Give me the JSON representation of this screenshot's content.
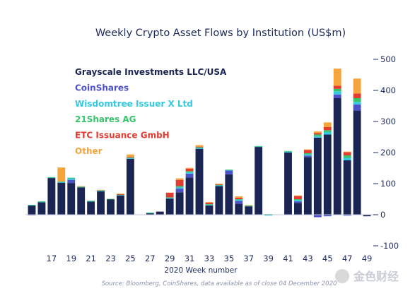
{
  "colors": {
    "grayscale": "#1b2553",
    "coinshares": "#4c51c8",
    "wisdomtree": "#36c8e2",
    "shares21": "#35c46a",
    "etc": "#e23b32",
    "other": "#f5a53b",
    "title": "#1d2a5c",
    "gridline": "#bfc4d4"
  },
  "chart_data": {
    "type": "bar",
    "stacked": true,
    "title": "Weekly Crypto Asset Flows by Institution (US$m)",
    "xlabel": "2020 Week number",
    "ylabel": "",
    "ylim": [
      -100,
      500
    ],
    "yticks": [
      -100,
      0,
      100,
      200,
      300,
      400,
      500
    ],
    "y_axis_side": "right",
    "legend_position": "top-left",
    "grid": false,
    "categories": [
      15,
      16,
      17,
      18,
      19,
      20,
      21,
      22,
      23,
      24,
      25,
      26,
      27,
      28,
      29,
      30,
      31,
      32,
      33,
      34,
      35,
      36,
      37,
      38,
      39,
      40,
      41,
      42,
      43,
      44,
      45,
      46,
      47,
      48,
      49
    ],
    "xtick_labels": [
      "17",
      "19",
      "21",
      "23",
      "25",
      "27",
      "29",
      "31",
      "33",
      "35",
      "37",
      "39",
      "41",
      "43",
      "45",
      "47",
      "49"
    ],
    "series": [
      {
        "name": "Grayscale Investments LLC/USA",
        "color_key": "grayscale",
        "values": [
          30,
          40,
          118,
          103,
          102,
          88,
          42,
          75,
          50,
          62,
          180,
          1,
          5,
          10,
          52,
          72,
          120,
          212,
          30,
          92,
          130,
          35,
          27,
          218,
          1,
          1,
          200,
          38,
          185,
          248,
          258,
          375,
          175,
          335,
          -5
        ]
      },
      {
        "name": "CoinShares",
        "color_key": "coinshares",
        "values": [
          -2,
          0,
          0,
          0,
          10,
          0,
          0,
          0,
          0,
          0,
          0,
          0,
          0,
          0,
          0,
          12,
          12,
          0,
          0,
          0,
          12,
          10,
          0,
          0,
          0,
          0,
          0,
          5,
          5,
          -8,
          -5,
          12,
          -3,
          20,
          0
        ]
      },
      {
        "name": "Wisdomtree Issuer X Ltd",
        "color_key": "wisdomtree",
        "values": [
          1,
          2,
          2,
          2,
          5,
          2,
          2,
          3,
          0,
          2,
          2,
          0,
          1,
          0,
          2,
          5,
          5,
          3,
          2,
          3,
          2,
          3,
          2,
          2,
          -3,
          0,
          3,
          4,
          4,
          5,
          8,
          10,
          8,
          8,
          0
        ]
      },
      {
        "name": "21Shares AG",
        "color_key": "shares21",
        "values": [
          1,
          1,
          1,
          2,
          2,
          1,
          1,
          1,
          1,
          1,
          2,
          0,
          1,
          0,
          2,
          3,
          3,
          2,
          2,
          1,
          1,
          2,
          1,
          1,
          1,
          0,
          2,
          3,
          4,
          5,
          6,
          8,
          8,
          12,
          0
        ]
      },
      {
        "name": "ETC Issuance GmbH",
        "color_key": "etc",
        "values": [
          0,
          0,
          0,
          0,
          0,
          0,
          0,
          0,
          0,
          1,
          2,
          0,
          0,
          0,
          15,
          20,
          8,
          2,
          5,
          2,
          0,
          5,
          0,
          0,
          0,
          0,
          0,
          10,
          10,
          5,
          10,
          10,
          10,
          15,
          0
        ]
      },
      {
        "name": "Other",
        "color_key": "other",
        "values": [
          0,
          0,
          0,
          45,
          0,
          1,
          0,
          1,
          0,
          2,
          8,
          0,
          0,
          0,
          0,
          5,
          3,
          5,
          2,
          2,
          0,
          4,
          1,
          0,
          0,
          0,
          0,
          2,
          2,
          5,
          15,
          55,
          2,
          48,
          0
        ]
      }
    ],
    "annotations": [
      "Source: Bloomberg, CoinShares, data available as of close 04 December 2020"
    ]
  },
  "watermark": {
    "text": "金色财经"
  }
}
